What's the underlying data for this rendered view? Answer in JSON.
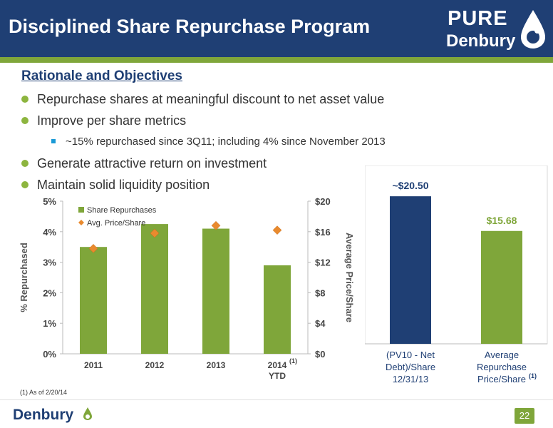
{
  "header": {
    "title": "Disciplined Share Repurchase Program",
    "logo_line1": "PURE",
    "logo_line2": "Denbury"
  },
  "section": {
    "title": "Rationale and Objectives",
    "bullets": [
      "Repurchase shares at meaningful discount to net asset value",
      "Improve per share metrics",
      "~15% repurchased since 3Q11; including 4% since November 2013",
      "Generate attractive return on investment",
      "Maintain solid liquidity position"
    ]
  },
  "chart_data": [
    {
      "type": "bar",
      "categories": [
        "2011",
        "2012",
        "2013",
        "2014 YTD"
      ],
      "category_labels": [
        {
          "line1": "2011",
          "line2": "",
          "sup": ""
        },
        {
          "line1": "2012",
          "line2": "",
          "sup": ""
        },
        {
          "line1": "2013",
          "line2": "",
          "sup": ""
        },
        {
          "line1": "2014",
          "line2": "YTD",
          "sup": "(1)"
        }
      ],
      "series": [
        {
          "name": "Share Repurchases",
          "type": "bar",
          "axis": "left",
          "values": [
            3.5,
            4.25,
            4.1,
            2.9
          ]
        },
        {
          "name": "Avg. Price/Share",
          "type": "scatter",
          "axis": "right",
          "values": [
            13.8,
            15.8,
            16.8,
            16.2
          ]
        }
      ],
      "ylabel": "% Repurchased",
      "y2label": "Average Price/Share",
      "ylim": [
        0,
        5
      ],
      "y2lim": [
        0,
        20
      ],
      "yticks": [
        "0%",
        "1%",
        "2%",
        "3%",
        "4%",
        "5%"
      ],
      "y2ticks": [
        "$0",
        "$4",
        "$8",
        "$12",
        "$16",
        "$20"
      ],
      "legend_position": "top-left",
      "grid": false,
      "colors": {
        "bar": "#7fa63a",
        "marker": "#e98a2e"
      }
    },
    {
      "type": "bar",
      "categories": [
        "(PV10 - Net Debt)/Share 12/31/13",
        "Average Repurchase Price/Share (1)"
      ],
      "category_labels": [
        {
          "lines": [
            "(PV10 - Net",
            "Debt)/Share",
            "12/31/13"
          ],
          "sup": ""
        },
        {
          "lines": [
            "Average",
            "Repurchase",
            "Price/Share"
          ],
          "sup": "(1)"
        }
      ],
      "values": [
        20.5,
        15.68
      ],
      "data_labels": [
        "~$20.50",
        "$15.68"
      ],
      "colors": [
        "#1f3f74",
        "#7fa63a"
      ],
      "ylim": [
        0,
        22
      ]
    }
  ],
  "footnote": "(1)    As of 2/20/14",
  "footer": {
    "logo_text": "Denbury",
    "page_number": "22"
  },
  "colors": {
    "header_bg": "#1f3f74",
    "accent_green": "#7fa63a",
    "bullet_green": "#8db53f",
    "sub_bullet_blue": "#1a9ad6"
  }
}
